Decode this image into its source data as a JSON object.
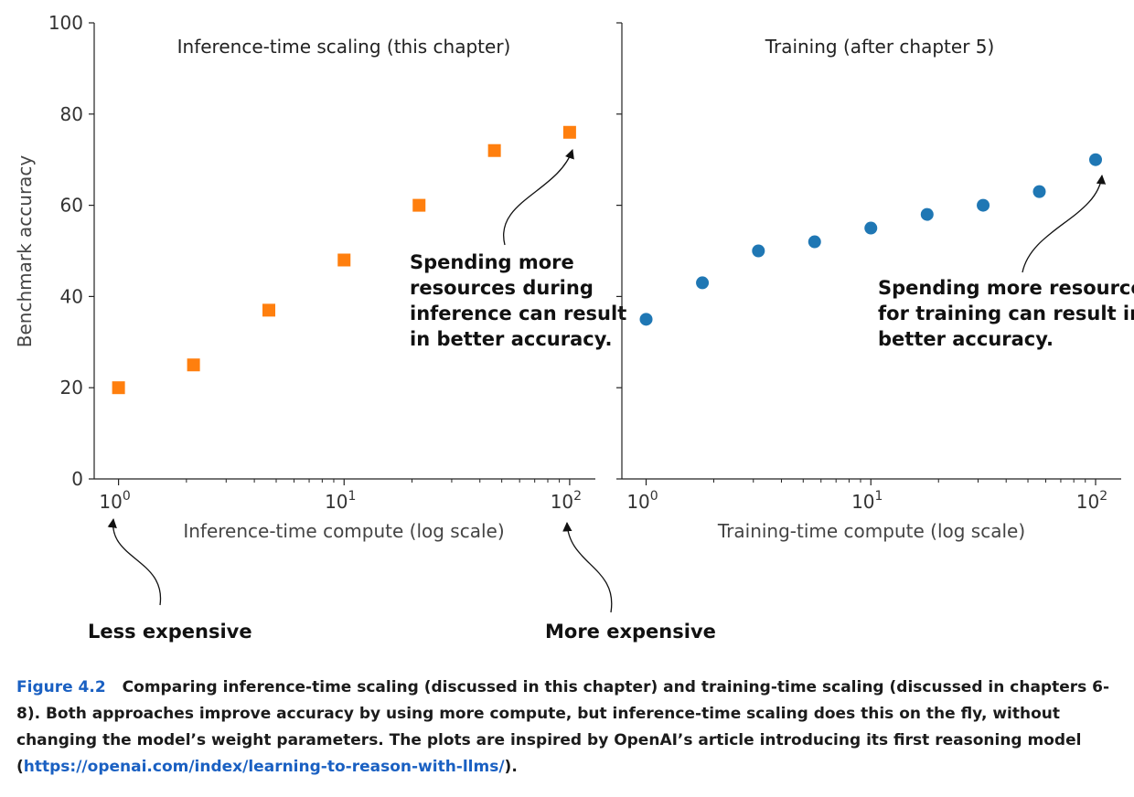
{
  "chart_data": [
    {
      "type": "scatter",
      "title": "Inference-time scaling (this chapter)",
      "xlabel": "Inference-time compute (log scale)",
      "ylabel": "Benchmark accuracy",
      "xscale": "log",
      "xlim": [
        0.78,
        130
      ],
      "ylim": [
        0,
        100
      ],
      "xticks": [
        1,
        10,
        100
      ],
      "xtick_labels": [
        {
          "base": "10",
          "exp": "0"
        },
        {
          "base": "10",
          "exp": "1"
        },
        {
          "base": "10",
          "exp": "2"
        }
      ],
      "yticks": [
        0,
        20,
        40,
        60,
        80,
        100
      ],
      "grid": false,
      "marker": "square",
      "color": "#ff7f0e",
      "series": [
        {
          "x": [
            1.0,
            2.15,
            4.64,
            10.0,
            21.5,
            46.4,
            100.0
          ],
          "y": [
            20,
            25,
            37,
            48,
            60,
            72,
            76
          ]
        }
      ],
      "annotations": [
        {
          "lines": [
            "Spending more",
            "resources during",
            "inference can result",
            "in better accuracy."
          ],
          "points_to": [
            100,
            76
          ]
        }
      ]
    },
    {
      "type": "scatter",
      "title": "Training (after chapter 5)",
      "xlabel": "Training-time compute (log scale)",
      "ylabel": "",
      "xscale": "log",
      "xlim": [
        0.78,
        130
      ],
      "ylim": [
        0,
        100
      ],
      "xticks": [
        1,
        10,
        100
      ],
      "xtick_labels": [
        {
          "base": "10",
          "exp": "0"
        },
        {
          "base": "10",
          "exp": "1"
        },
        {
          "base": "10",
          "exp": "2"
        }
      ],
      "yticks": [
        0,
        20,
        40,
        60,
        80,
        100
      ],
      "grid": false,
      "marker": "circle",
      "color": "#1f77b4",
      "series": [
        {
          "x": [
            1.0,
            1.78,
            3.16,
            5.62,
            10.0,
            17.8,
            31.6,
            56.2,
            100.0
          ],
          "y": [
            35,
            43,
            50,
            52,
            55,
            58,
            60,
            63,
            70
          ]
        }
      ],
      "annotations": [
        {
          "lines": [
            "Spending more resources",
            "for training can result in",
            "better accuracy."
          ],
          "points_to": [
            100,
            70
          ]
        }
      ]
    }
  ],
  "bottom_notes": {
    "less": "Less expensive",
    "more": "More expensive"
  },
  "caption": {
    "label": "Figure 4.2",
    "text": "Comparing inference-time scaling (discussed in this chapter) and training-time scaling (discussed in chapters 6-8). Both approaches improve accuracy by using more compute, but inference-time scaling does this on the fly, without changing the model’s weight parameters. The plots are inspired by OpenAI’s article introducing its first reasoning model (",
    "link": "https://openai.com/index/learning-to-reason-with-llms/",
    "end": ")."
  }
}
